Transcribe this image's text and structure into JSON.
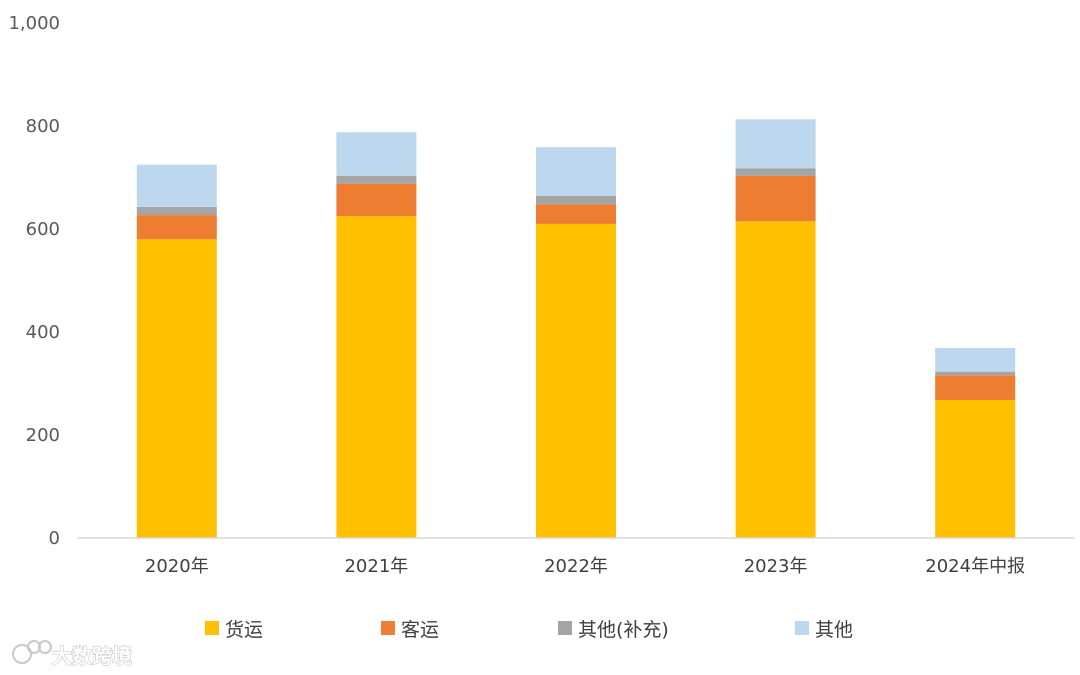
{
  "chart_data": {
    "type": "bar",
    "stacked": true,
    "categories": [
      "2020年",
      "2021年",
      "2022年",
      "2023年",
      "2024年中报"
    ],
    "series": [
      {
        "name": "货运",
        "color": "#FFC000",
        "values": [
          580,
          625,
          610,
          615,
          268
        ]
      },
      {
        "name": "客运",
        "color": "#ED7D31",
        "values": [
          47,
          63,
          38,
          88,
          48
        ]
      },
      {
        "name": "其他(补充)",
        "color": "#A5A5A5",
        "values": [
          16,
          15,
          16,
          15,
          7
        ]
      },
      {
        "name": "其他",
        "color": "#BDD7EE",
        "values": [
          82,
          85,
          95,
          95,
          46
        ]
      }
    ],
    "ylim": [
      0,
      1000
    ],
    "yticks": [
      0,
      200,
      400,
      600,
      800,
      1000
    ],
    "ytick_labels": [
      "0",
      "200",
      "400",
      "600",
      "800",
      "1,000"
    ],
    "grid": false,
    "legend_position": "bottom",
    "title": "",
    "xlabel": "",
    "ylabel": ""
  },
  "watermark": {
    "text": "大数跨境",
    "icon": "logo-icon"
  }
}
